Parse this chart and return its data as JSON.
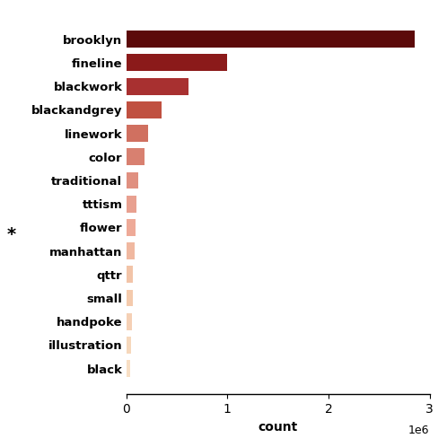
{
  "categories": [
    "brooklyn",
    "fineline",
    "blackwork",
    "blackandgrey",
    "linework",
    "color",
    "traditional",
    "tttism",
    "flower",
    "manhattan",
    "qttr",
    "small",
    "handpoke",
    "illustration",
    "black"
  ],
  "values": [
    2850000,
    1000000,
    620000,
    350000,
    220000,
    180000,
    120000,
    100000,
    90000,
    80000,
    70000,
    65000,
    55000,
    45000,
    35000
  ],
  "xlabel": "count",
  "background_color": "#ffffff",
  "annotation": "*",
  "xlim": [
    0,
    3000000
  ],
  "bar_colors": [
    "#5c0a0a",
    "#8b1a1a",
    "#a83030",
    "#c05040",
    "#d07060",
    "#d88070",
    "#e09080",
    "#e8a090",
    "#eeaa98",
    "#f0b8a0",
    "#f2c4a8",
    "#f4caac",
    "#f5d0b5",
    "#f6d8bc",
    "#f8dfc5"
  ]
}
